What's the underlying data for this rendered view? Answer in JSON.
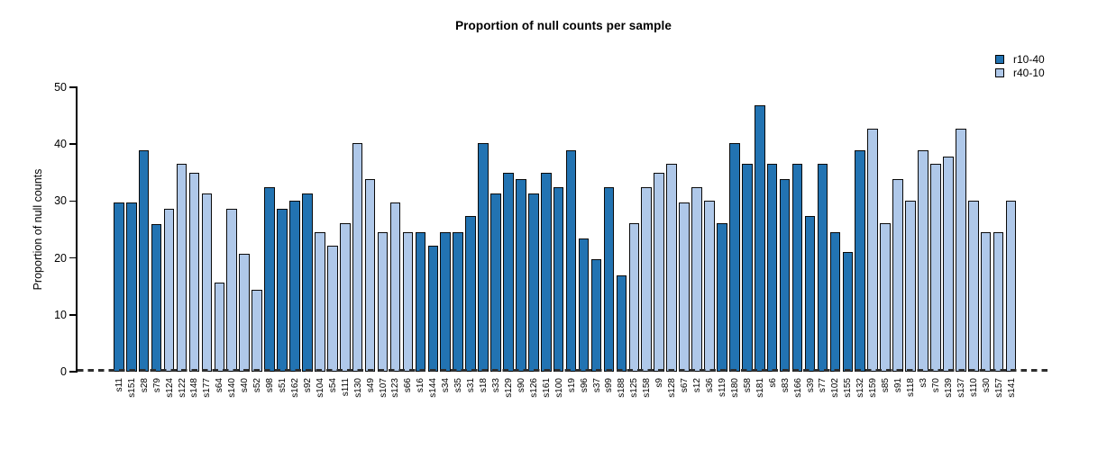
{
  "title": "Proportion of null counts per sample",
  "y_axis": {
    "label": "Proportion of null counts",
    "ticks": [
      0,
      10,
      20,
      30,
      40,
      50
    ]
  },
  "legend": [
    {
      "label": "r10-40",
      "color": "#2273B2"
    },
    {
      "label": "r40-10",
      "color": "#AFC8E9"
    }
  ],
  "chart_data": {
    "type": "bar",
    "title": "Proportion of null counts per sample",
    "xlabel": "",
    "ylabel": "Proportion of null counts",
    "ylim": [
      0,
      50
    ],
    "grid": false,
    "legend_position": "top-right",
    "series_colors": {
      "r10-40": "#2273B2",
      "r40-10": "#AFC8E9"
    },
    "samples": [
      {
        "label": "s11",
        "value": 29.8,
        "group": "r10-40"
      },
      {
        "label": "s151",
        "value": 29.8,
        "group": "r10-40"
      },
      {
        "label": "s28",
        "value": 39.0,
        "group": "r10-40"
      },
      {
        "label": "s79",
        "value": 26.0,
        "group": "r10-40"
      },
      {
        "label": "s124",
        "value": 28.7,
        "group": "r40-10"
      },
      {
        "label": "s122",
        "value": 36.5,
        "group": "r40-10"
      },
      {
        "label": "s148",
        "value": 35.0,
        "group": "r40-10"
      },
      {
        "label": "s177",
        "value": 31.3,
        "group": "r40-10"
      },
      {
        "label": "s64",
        "value": 15.7,
        "group": "r40-10"
      },
      {
        "label": "s140",
        "value": 28.6,
        "group": "r40-10"
      },
      {
        "label": "s40",
        "value": 20.8,
        "group": "r40-10"
      },
      {
        "label": "s52",
        "value": 14.4,
        "group": "r40-10"
      },
      {
        "label": "s98",
        "value": 32.5,
        "group": "r10-40"
      },
      {
        "label": "s51",
        "value": 28.7,
        "group": "r10-40"
      },
      {
        "label": "s162",
        "value": 30.0,
        "group": "r10-40"
      },
      {
        "label": "s92",
        "value": 31.3,
        "group": "r10-40"
      },
      {
        "label": "s104",
        "value": 24.6,
        "group": "r40-10"
      },
      {
        "label": "s54",
        "value": 22.2,
        "group": "r40-10"
      },
      {
        "label": "s111",
        "value": 26.1,
        "group": "r40-10"
      },
      {
        "label": "s130",
        "value": 40.2,
        "group": "r40-10"
      },
      {
        "label": "s49",
        "value": 33.8,
        "group": "r40-10"
      },
      {
        "label": "s107",
        "value": 24.6,
        "group": "r40-10"
      },
      {
        "label": "s123",
        "value": 29.8,
        "group": "r40-10"
      },
      {
        "label": "s66",
        "value": 24.6,
        "group": "r40-10"
      },
      {
        "label": "s16",
        "value": 24.6,
        "group": "r10-40"
      },
      {
        "label": "s144",
        "value": 22.1,
        "group": "r10-40"
      },
      {
        "label": "s34",
        "value": 24.6,
        "group": "r10-40"
      },
      {
        "label": "s35",
        "value": 24.6,
        "group": "r10-40"
      },
      {
        "label": "s31",
        "value": 27.3,
        "group": "r10-40"
      },
      {
        "label": "s18",
        "value": 40.2,
        "group": "r10-40"
      },
      {
        "label": "s33",
        "value": 31.3,
        "group": "r10-40"
      },
      {
        "label": "s129",
        "value": 35.0,
        "group": "r10-40"
      },
      {
        "label": "s90",
        "value": 33.8,
        "group": "r10-40"
      },
      {
        "label": "s126",
        "value": 31.3,
        "group": "r10-40"
      },
      {
        "label": "s161",
        "value": 35.0,
        "group": "r10-40"
      },
      {
        "label": "s100",
        "value": 32.5,
        "group": "r10-40"
      },
      {
        "label": "s19",
        "value": 39.0,
        "group": "r10-40"
      },
      {
        "label": "s96",
        "value": 23.4,
        "group": "r10-40"
      },
      {
        "label": "s37",
        "value": 19.7,
        "group": "r10-40"
      },
      {
        "label": "s99",
        "value": 32.5,
        "group": "r10-40"
      },
      {
        "label": "s188",
        "value": 17.0,
        "group": "r10-40"
      },
      {
        "label": "s125",
        "value": 26.1,
        "group": "r40-10"
      },
      {
        "label": "s158",
        "value": 32.5,
        "group": "r40-10"
      },
      {
        "label": "s9",
        "value": 35.0,
        "group": "r40-10"
      },
      {
        "label": "s128",
        "value": 36.5,
        "group": "r40-10"
      },
      {
        "label": "s67",
        "value": 29.8,
        "group": "r40-10"
      },
      {
        "label": "s12",
        "value": 32.5,
        "group": "r40-10"
      },
      {
        "label": "s36",
        "value": 30.0,
        "group": "r40-10"
      },
      {
        "label": "s119",
        "value": 26.1,
        "group": "r10-40"
      },
      {
        "label": "s180",
        "value": 40.2,
        "group": "r10-40"
      },
      {
        "label": "s58",
        "value": 36.5,
        "group": "r10-40"
      },
      {
        "label": "s181",
        "value": 46.9,
        "group": "r10-40"
      },
      {
        "label": "s6",
        "value": 36.5,
        "group": "r10-40"
      },
      {
        "label": "s83",
        "value": 33.8,
        "group": "r10-40"
      },
      {
        "label": "s166",
        "value": 36.5,
        "group": "r10-40"
      },
      {
        "label": "s39",
        "value": 27.3,
        "group": "r10-40"
      },
      {
        "label": "s77",
        "value": 36.5,
        "group": "r10-40"
      },
      {
        "label": "s102",
        "value": 24.6,
        "group": "r10-40"
      },
      {
        "label": "s155",
        "value": 21.0,
        "group": "r10-40"
      },
      {
        "label": "s132",
        "value": 39.0,
        "group": "r10-40"
      },
      {
        "label": "s159",
        "value": 42.8,
        "group": "r40-10"
      },
      {
        "label": "s85",
        "value": 26.1,
        "group": "r40-10"
      },
      {
        "label": "s91",
        "value": 33.8,
        "group": "r40-10"
      },
      {
        "label": "s118",
        "value": 30.0,
        "group": "r40-10"
      },
      {
        "label": "s3",
        "value": 39.0,
        "group": "r40-10"
      },
      {
        "label": "s70",
        "value": 36.5,
        "group": "r40-10"
      },
      {
        "label": "s139",
        "value": 37.8,
        "group": "r40-10"
      },
      {
        "label": "s137",
        "value": 42.8,
        "group": "r40-10"
      },
      {
        "label": "s110",
        "value": 30.0,
        "group": "r40-10"
      },
      {
        "label": "s30",
        "value": 24.6,
        "group": "r40-10"
      },
      {
        "label": "s157",
        "value": 24.6,
        "group": "r40-10"
      },
      {
        "label": "s141",
        "value": 30.0,
        "group": "r40-10"
      }
    ]
  }
}
